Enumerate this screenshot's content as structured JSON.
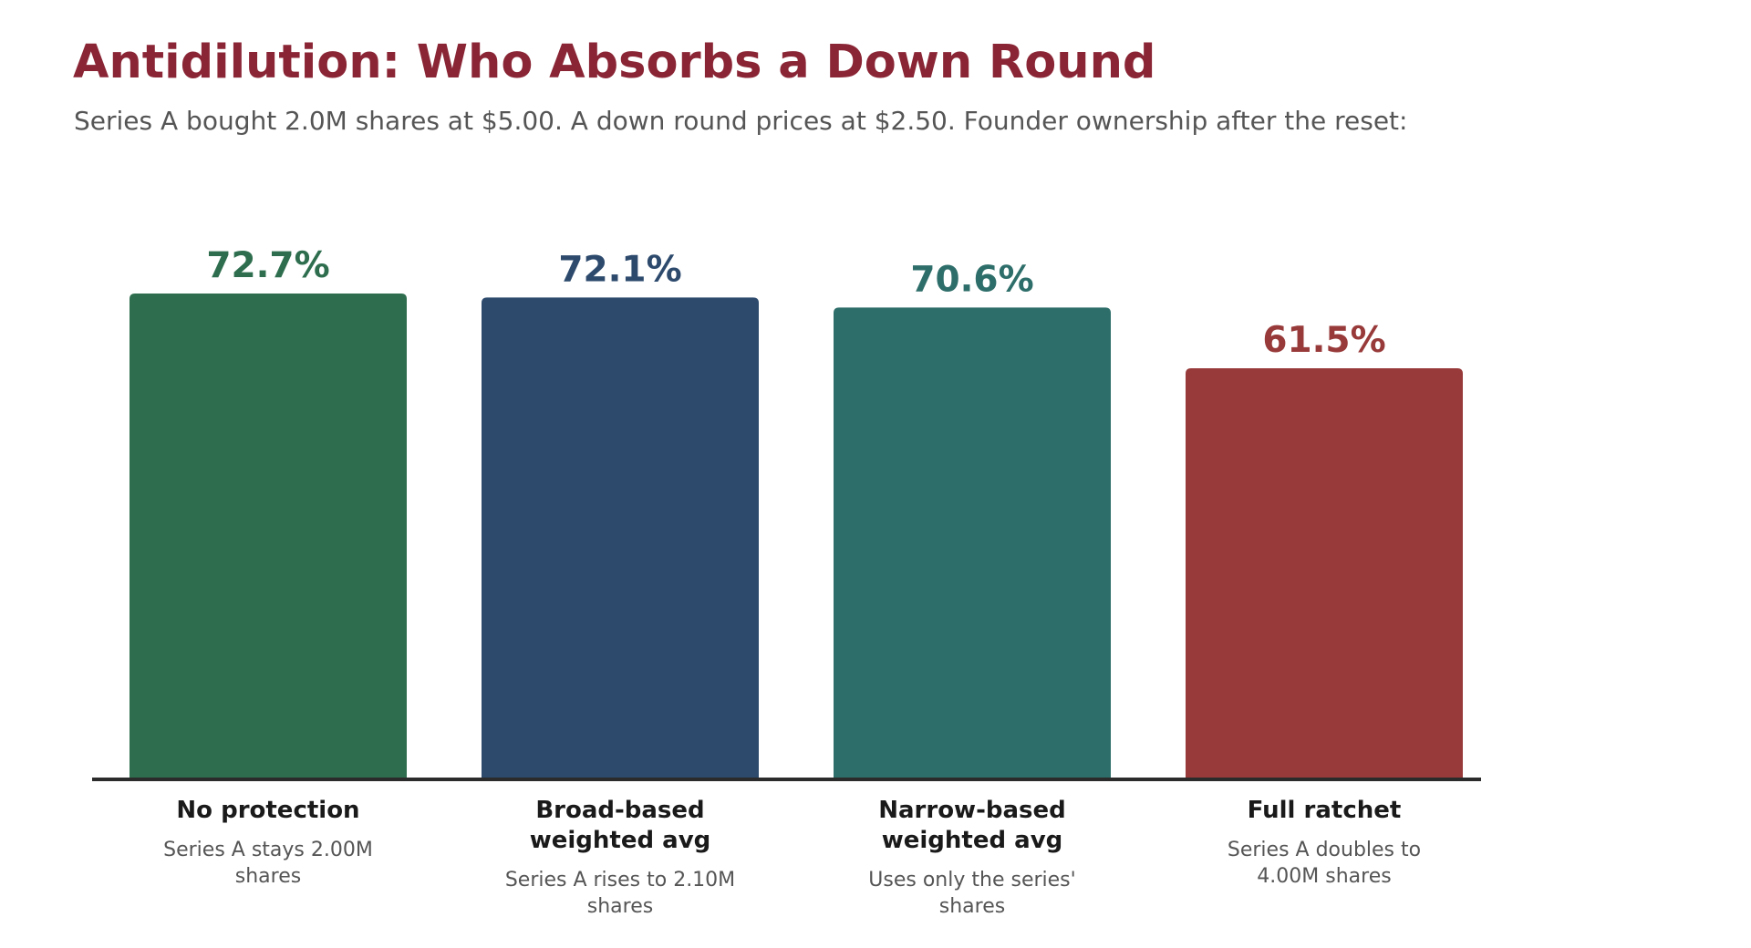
{
  "header": {
    "title": "Antidilution: Who Absorbs a Down Round",
    "subtitle": "Series A bought 2.0M shares at $5.00. A down round prices at $2.50. Founder ownership after the reset:"
  },
  "chart_data": {
    "type": "bar",
    "title": "Antidilution: Who Absorbs a Down Round",
    "subtitle": "Series A bought 2.0M shares at $5.00. A down round prices at $2.50. Founder ownership after the reset:",
    "categories": [
      [
        "No protection"
      ],
      [
        "Broad-based",
        "weighted avg"
      ],
      [
        "Narrow-based",
        "weighted avg"
      ],
      [
        "Full ratchet"
      ]
    ],
    "notes": [
      [
        "Series A stays 2.00M",
        "shares"
      ],
      [
        "Series A rises to 2.10M",
        "shares"
      ],
      [
        "Uses only the series'",
        "shares"
      ],
      [
        "Series A doubles to",
        "4.00M shares"
      ]
    ],
    "values": [
      72.7,
      72.1,
      70.6,
      61.5
    ],
    "value_labels": [
      "72.7%",
      "72.1%",
      "70.6%",
      "61.5%"
    ],
    "colors": [
      "#2e6e4e",
      "#2d4a6d",
      "#2e6e6a",
      "#983a3a"
    ],
    "ylim": [
      0,
      72.7
    ],
    "xlabel": "",
    "ylabel": "",
    "grid": false,
    "legend": "none"
  }
}
